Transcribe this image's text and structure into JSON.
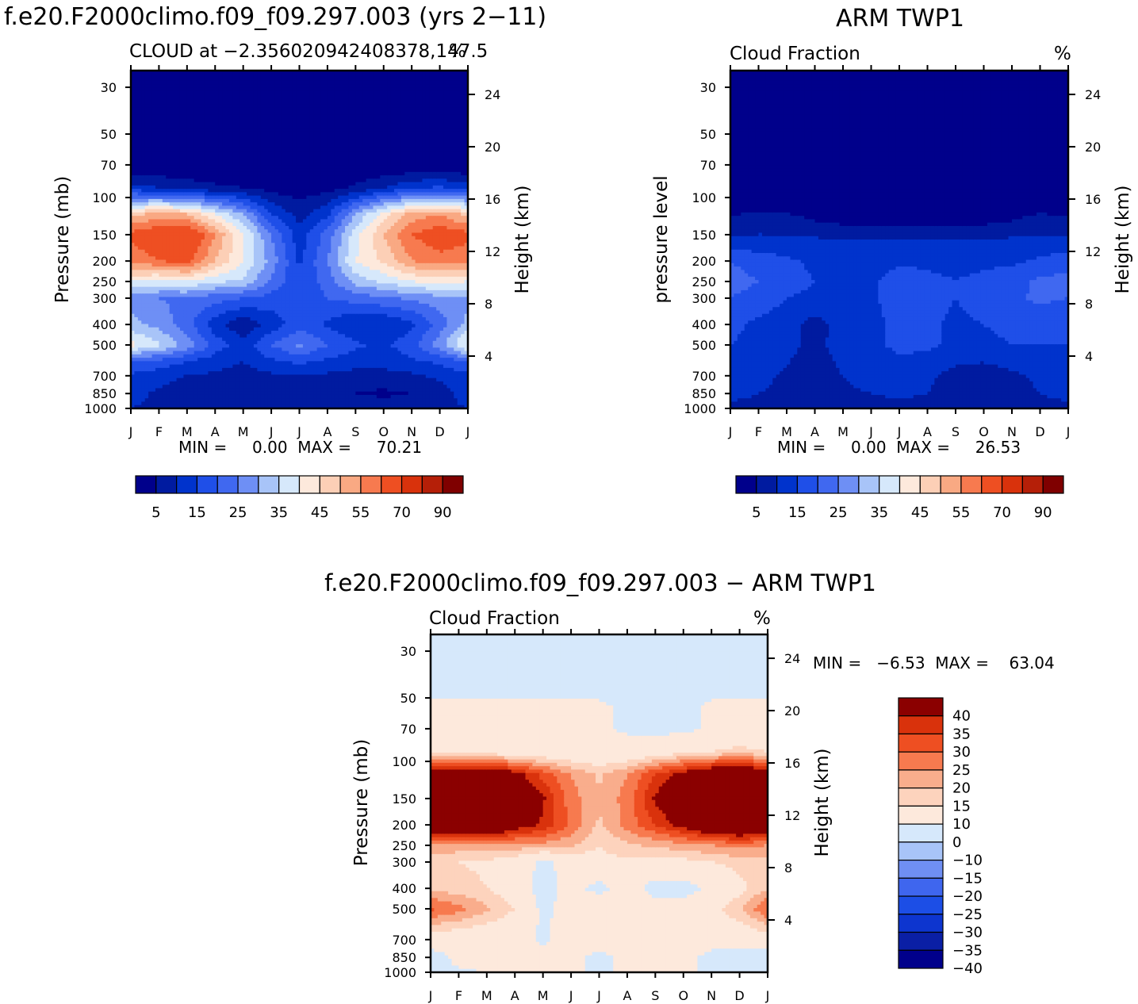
{
  "colors": {
    "seq": [
      "#00008b",
      "#001ba0",
      "#0033cc",
      "#1f4fe8",
      "#4068f0",
      "#6e8ff5",
      "#a8c4f8",
      "#d6e8fb",
      "#fde9dc",
      "#fccfb6",
      "#f9a983",
      "#f77a4f",
      "#ee4f22",
      "#d9320c",
      "#b51f08",
      "#7f0000"
    ],
    "diff": [
      "#00008b",
      "#0a1fa5",
      "#0d35cf",
      "#1c4ee6",
      "#3f66ee",
      "#6f8ff3",
      "#a8c4f8",
      "#d6e8fb",
      "#fde9dc",
      "#fdd3bd",
      "#f9ad8c",
      "#f77a4f",
      "#ee4f22",
      "#d9320c",
      "#8b0000"
    ]
  },
  "panel_left": {
    "title": "f.e20.F2000climo.f09_f09.297.003 (yrs 2−11)",
    "subtitle": "CLOUD at −2.356020942408378,147.5",
    "units": "%",
    "minmax": "MIN =     0.00  MAX =     70.21"
  },
  "panel_right": {
    "title": "ARM  TWP1",
    "subtitle": "Cloud  Fraction",
    "units": "%",
    "minmax": "MIN =     0.00  MAX =     26.53"
  },
  "panel_diff": {
    "title": "f.e20.F2000climo.f09_f09.297.003 − ARM  TWP1",
    "subtitle": "Cloud  Fraction",
    "units": "%",
    "minmax": "MIN =   −6.53  MAX =    63.04"
  },
  "chart_data": [
    {
      "type": "heatmap",
      "title": "f.e20.F2000climo.f09_f09.297.003 (yrs 2−11)",
      "subtitle": "CLOUD at −2.356020942408378,147.5",
      "ylabel": "Pressure (mb)",
      "ylabel_right": "Height (km)",
      "x_ticks": [
        "J",
        "F",
        "M",
        "A",
        "M",
        "J",
        "J",
        "A",
        "S",
        "O",
        "N",
        "D",
        "J"
      ],
      "y_ticks": [
        30,
        50,
        70,
        100,
        150,
        200,
        250,
        300,
        400,
        500,
        700,
        850,
        1000
      ],
      "y2_ticks": [
        24,
        20,
        16,
        12,
        8,
        4
      ],
      "ylim": [
        1000,
        25
      ],
      "min": 0.0,
      "max": 70.21,
      "colorbar_labels": [
        "5",
        "15",
        "25",
        "35",
        "45",
        "55",
        "70",
        "90"
      ],
      "levels": [
        {
          "p": 30,
          "v": [
            0,
            0,
            0,
            0,
            0,
            0,
            0,
            0,
            0,
            0,
            0,
            0,
            0
          ]
        },
        {
          "p": 70,
          "v": [
            0,
            0,
            0,
            0,
            0,
            0,
            0,
            0,
            0,
            0,
            0,
            0,
            0
          ]
        },
        {
          "p": 90,
          "v": [
            12,
            10,
            8,
            6,
            5,
            3,
            2,
            3,
            6,
            10,
            14,
            16,
            12
          ]
        },
        {
          "p": 120,
          "v": [
            48,
            52,
            50,
            40,
            30,
            15,
            8,
            14,
            30,
            42,
            52,
            55,
            48
          ]
        },
        {
          "p": 150,
          "v": [
            62,
            66,
            68,
            55,
            40,
            25,
            12,
            22,
            38,
            50,
            60,
            64,
            62
          ]
        },
        {
          "p": 200,
          "v": [
            56,
            60,
            62,
            50,
            40,
            28,
            14,
            25,
            40,
            46,
            55,
            58,
            56
          ]
        },
        {
          "p": 250,
          "v": [
            40,
            38,
            40,
            36,
            34,
            24,
            16,
            22,
            32,
            36,
            40,
            42,
            40
          ]
        },
        {
          "p": 300,
          "v": [
            28,
            25,
            24,
            22,
            20,
            18,
            16,
            20,
            22,
            24,
            26,
            28,
            28
          ]
        },
        {
          "p": 400,
          "v": [
            32,
            28,
            22,
            12,
            6,
            12,
            18,
            14,
            10,
            10,
            14,
            22,
            32
          ]
        },
        {
          "p": 500,
          "v": [
            42,
            36,
            28,
            18,
            12,
            20,
            26,
            20,
            16,
            14,
            18,
            28,
            42
          ]
        },
        {
          "p": 600,
          "v": [
            20,
            18,
            15,
            12,
            10,
            14,
            16,
            14,
            12,
            12,
            14,
            16,
            20
          ]
        },
        {
          "p": 700,
          "v": [
            14,
            12,
            10,
            9,
            8,
            9,
            10,
            9,
            8,
            8,
            9,
            11,
            14
          ]
        },
        {
          "p": 850,
          "v": [
            12,
            9,
            6,
            5,
            5,
            7,
            9,
            7,
            5,
            4,
            5,
            8,
            12
          ]
        },
        {
          "p": 1000,
          "v": [
            10,
            9,
            8,
            8,
            8,
            8,
            9,
            8,
            8,
            8,
            8,
            9,
            10
          ]
        }
      ]
    },
    {
      "type": "heatmap",
      "title": "ARM  TWP1",
      "subtitle": "Cloud  Fraction",
      "ylabel": "pressure level",
      "ylabel_right": "Height (km)",
      "x_ticks": [
        "J",
        "F",
        "M",
        "A",
        "M",
        "J",
        "J",
        "A",
        "S",
        "O",
        "N",
        "D",
        "J"
      ],
      "y_ticks": [
        30,
        50,
        70,
        100,
        150,
        200,
        250,
        300,
        400,
        500,
        700,
        850,
        1000
      ],
      "y2_ticks": [
        24,
        20,
        16,
        12,
        8,
        4
      ],
      "ylim": [
        1000,
        25
      ],
      "min": 0.0,
      "max": 26.53,
      "colorbar_labels": [
        "5",
        "15",
        "25",
        "35",
        "45",
        "55",
        "70",
        "90"
      ],
      "levels": [
        {
          "p": 30,
          "v": [
            0,
            0,
            0,
            0,
            0,
            0,
            0,
            0,
            0,
            0,
            0,
            0,
            0
          ]
        },
        {
          "p": 100,
          "v": [
            1,
            1,
            1,
            1,
            1,
            1,
            1,
            1,
            1,
            1,
            1,
            1,
            1
          ]
        },
        {
          "p": 130,
          "v": [
            6,
            8,
            7,
            5,
            4,
            3,
            3,
            3,
            4,
            4,
            5,
            7,
            6
          ]
        },
        {
          "p": 160,
          "v": [
            11,
            11,
            11,
            11,
            10,
            10,
            10,
            10,
            10,
            10,
            11,
            11,
            11
          ]
        },
        {
          "p": 200,
          "v": [
            20,
            18,
            16,
            14,
            12,
            12,
            14,
            14,
            14,
            14,
            14,
            16,
            18
          ]
        },
        {
          "p": 250,
          "v": [
            22,
            20,
            17,
            15,
            13,
            14,
            18,
            16,
            15,
            16,
            18,
            21,
            22
          ]
        },
        {
          "p": 300,
          "v": [
            20,
            18,
            15,
            14,
            12,
            14,
            18,
            17,
            15,
            17,
            19,
            21,
            20
          ]
        },
        {
          "p": 400,
          "v": [
            16,
            14,
            12,
            8,
            12,
            13,
            17,
            16,
            14,
            15,
            16,
            17,
            16
          ]
        },
        {
          "p": 500,
          "v": [
            15,
            14,
            12,
            8,
            13,
            14,
            16,
            16,
            14,
            14,
            15,
            15,
            15
          ]
        },
        {
          "p": 700,
          "v": [
            13,
            12,
            9,
            6,
            10,
            12,
            13,
            11,
            8,
            7,
            9,
            11,
            13
          ]
        },
        {
          "p": 850,
          "v": [
            12,
            10,
            8,
            6,
            9,
            10,
            11,
            10,
            8,
            7,
            8,
            10,
            12
          ]
        },
        {
          "p": 1000,
          "v": [
            8,
            8,
            8,
            8,
            8,
            8,
            8,
            8,
            8,
            8,
            8,
            8,
            8
          ]
        }
      ]
    },
    {
      "type": "heatmap",
      "title": "f.e20.F2000climo.f09_f09.297.003 − ARM  TWP1",
      "subtitle": "Cloud  Fraction",
      "ylabel": "Pressure (mb)",
      "ylabel_right": "Height (km)",
      "x_ticks": [
        "J",
        "F",
        "M",
        "A",
        "M",
        "J",
        "J",
        "A",
        "S",
        "O",
        "N",
        "D",
        "J"
      ],
      "y_ticks": [
        30,
        50,
        70,
        100,
        150,
        200,
        250,
        300,
        400,
        500,
        700,
        850,
        1000
      ],
      "y2_ticks": [
        24,
        20,
        16,
        12,
        8,
        4
      ],
      "ylim": [
        1000,
        25
      ],
      "min": -6.53,
      "max": 63.04,
      "colorbar_labels": [
        "40",
        "35",
        "30",
        "25",
        "20",
        "15",
        "10",
        "0",
        "−10",
        "−15",
        "−20",
        "−25",
        "−30",
        "−35",
        "−40"
      ],
      "levels": [
        {
          "p": 30,
          "v": [
            -3,
            -3,
            -3,
            -3,
            -3,
            -3,
            -3,
            -3,
            -3,
            -3,
            -3,
            -3,
            -3
          ]
        },
        {
          "p": 45,
          "v": [
            -2,
            -2,
            -2,
            -2,
            -2,
            -2,
            -2,
            -2,
            -2,
            -2,
            -2,
            -2,
            -2
          ]
        },
        {
          "p": 55,
          "v": [
            2,
            2,
            2,
            2,
            2,
            2,
            1,
            -1,
            -2,
            -2,
            1,
            2,
            2
          ]
        },
        {
          "p": 70,
          "v": [
            3,
            3,
            3,
            3,
            3,
            2,
            1,
            -1,
            -2,
            -2,
            1,
            3,
            3
          ]
        },
        {
          "p": 90,
          "v": [
            10,
            8,
            6,
            5,
            4,
            3,
            2,
            3,
            5,
            8,
            10,
            12,
            10
          ]
        },
        {
          "p": 115,
          "v": [
            40,
            44,
            46,
            38,
            28,
            20,
            14,
            20,
            30,
            38,
            45,
            48,
            40
          ]
        },
        {
          "p": 150,
          "v": [
            52,
            56,
            58,
            46,
            36,
            22,
            16,
            22,
            36,
            46,
            56,
            60,
            52
          ]
        },
        {
          "p": 200,
          "v": [
            46,
            48,
            50,
            40,
            34,
            24,
            14,
            22,
            30,
            38,
            46,
            50,
            46
          ]
        },
        {
          "p": 250,
          "v": [
            20,
            18,
            18,
            18,
            18,
            16,
            10,
            14,
            16,
            18,
            20,
            22,
            20
          ]
        },
        {
          "p": 300,
          "v": [
            12,
            10,
            9,
            6,
            -2,
            4,
            8,
            9,
            8,
            8,
            10,
            12,
            12
          ]
        },
        {
          "p": 400,
          "v": [
            14,
            12,
            10,
            6,
            -4,
            3,
            -3,
            5,
            -4,
            -4,
            2,
            8,
            14
          ]
        },
        {
          "p": 500,
          "v": [
            26,
            22,
            16,
            10,
            -2,
            4,
            8,
            6,
            4,
            4,
            8,
            14,
            26
          ]
        },
        {
          "p": 700,
          "v": [
            5,
            4,
            3,
            3,
            -1,
            3,
            5,
            3,
            3,
            3,
            3,
            4,
            5
          ]
        },
        {
          "p": 850,
          "v": [
            -4,
            2,
            3,
            3,
            2,
            3,
            -3,
            3,
            3,
            2,
            -2,
            -4,
            -4
          ]
        },
        {
          "p": 1000,
          "v": [
            -1,
            -1,
            0,
            0,
            0,
            0,
            0,
            0,
            0,
            0,
            0,
            -1,
            -1
          ]
        }
      ]
    }
  ]
}
